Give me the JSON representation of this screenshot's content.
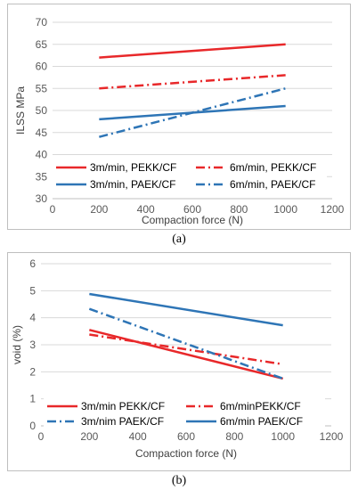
{
  "colors": {
    "red": "#e8282a",
    "blue": "#2e75b6",
    "grid": "#d9d9d9",
    "axis": "#bfbfbf"
  },
  "captions": {
    "a": "(a)",
    "b": "(b)"
  },
  "chart_data": [
    {
      "type": "line",
      "xlabel": "Compaction force (N)",
      "ylabel": "ILSS MPa",
      "xlim": [
        0,
        1200
      ],
      "ylim": [
        30,
        70
      ],
      "xticks": [
        0,
        200,
        400,
        600,
        800,
        1000,
        1200
      ],
      "yticks": [
        30,
        35,
        40,
        45,
        50,
        55,
        60,
        65,
        70
      ],
      "grid": "horizontal",
      "legend": "inside-bottom",
      "series": [
        {
          "name": "3m/min, PEKK/CF",
          "x": [
            200,
            1000
          ],
          "y": [
            62,
            65
          ],
          "color": "#e8282a",
          "dash": "solid"
        },
        {
          "name": "6m/min, PEKK/CF",
          "x": [
            200,
            1000
          ],
          "y": [
            55,
            58
          ],
          "color": "#e8282a",
          "dash": "dashdot"
        },
        {
          "name": "3m/min, PAEK/CF",
          "x": [
            200,
            1000
          ],
          "y": [
            48,
            51
          ],
          "color": "#2e75b6",
          "dash": "solid"
        },
        {
          "name": "6m/min, PAEK/CF",
          "x": [
            200,
            1000
          ],
          "y": [
            44,
            55
          ],
          "color": "#2e75b6",
          "dash": "dashdot"
        }
      ]
    },
    {
      "type": "line",
      "xlabel": "Compaction force (N)",
      "ylabel": "void (%)",
      "xlim": [
        0,
        1200
      ],
      "ylim": [
        0,
        6
      ],
      "xticks": [
        0,
        200,
        400,
        600,
        800,
        1000,
        1200
      ],
      "yticks": [
        0,
        1,
        2,
        3,
        4,
        5,
        6
      ],
      "grid": "horizontal",
      "legend": "inside-bottom",
      "series": [
        {
          "name": "3m/min PEKK/CF",
          "x": [
            200,
            1000
          ],
          "y": [
            3.55,
            1.75
          ],
          "color": "#e8282a",
          "dash": "solid"
        },
        {
          "name": "6m/minPEKK/CF",
          "x": [
            200,
            1000
          ],
          "y": [
            3.38,
            2.28
          ],
          "color": "#e8282a",
          "dash": "dashdot"
        },
        {
          "name": "3m/nim PAEK/CF",
          "x": [
            200,
            1000
          ],
          "y": [
            4.33,
            1.75
          ],
          "color": "#2e75b6",
          "dash": "dashdot"
        },
        {
          "name": "6m/min PAEK/CF",
          "x": [
            200,
            1000
          ],
          "y": [
            4.88,
            3.72
          ],
          "color": "#2e75b6",
          "dash": "solid"
        }
      ]
    }
  ]
}
